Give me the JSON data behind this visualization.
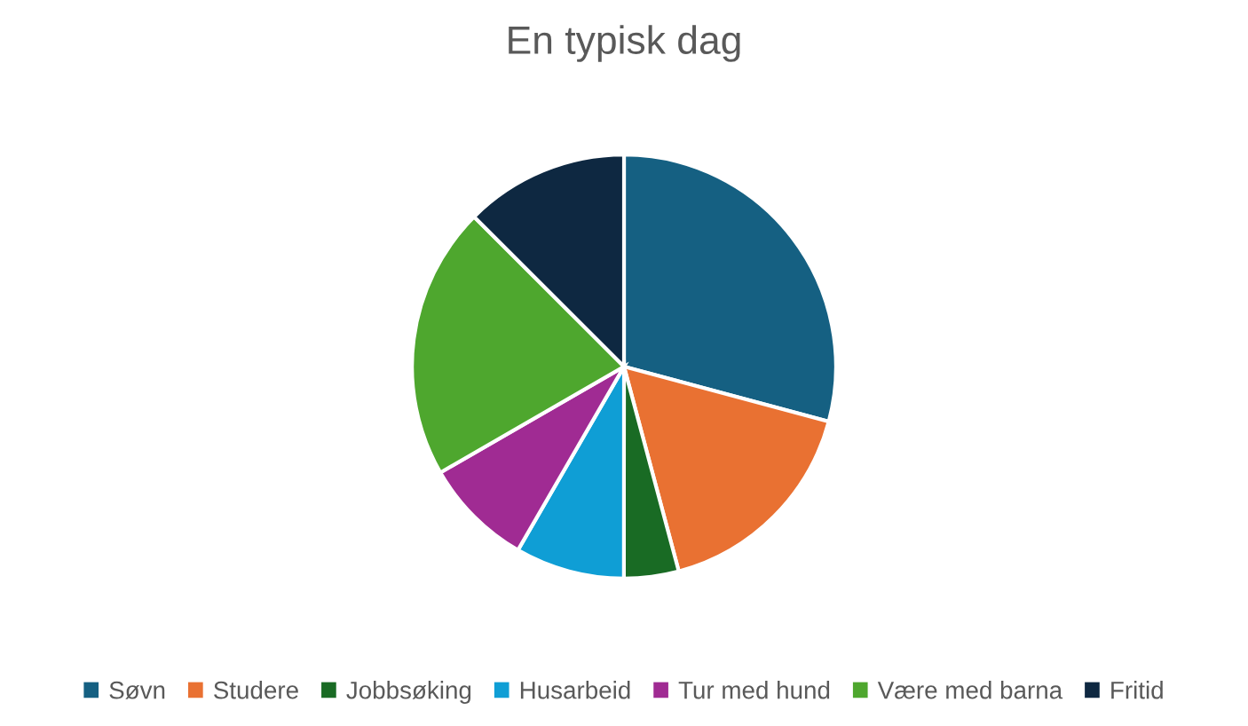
{
  "chart_data": {
    "type": "pie",
    "title": "En typisk dag",
    "categories": [
      "Søvn",
      "Studere",
      "Jobbsøking",
      "Husarbeid",
      "Tur med hund",
      "Være med barna",
      "Fritid"
    ],
    "values": [
      29.17,
      16.67,
      4.17,
      8.33,
      8.33,
      20.83,
      12.5
    ],
    "colors": [
      "#156082",
      "#e97132",
      "#196b24",
      "#0f9ed5",
      "#a02b93",
      "#4ea72e",
      "#0e2841"
    ],
    "legend": "bottom"
  }
}
